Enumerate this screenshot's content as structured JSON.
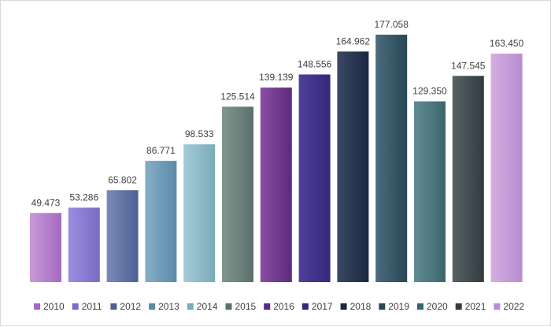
{
  "chart_data": {
    "type": "bar",
    "title": "",
    "xlabel": "",
    "ylabel": "",
    "ylim": [
      0,
      190
    ],
    "grid": false,
    "legend_position": "bottom",
    "categories": [
      "2010",
      "2011",
      "2012",
      "2013",
      "2014",
      "2015",
      "2016",
      "2017",
      "2018",
      "2019",
      "2020",
      "2021",
      "2022"
    ],
    "values": [
      49.473,
      53.286,
      65.802,
      86.771,
      98.533,
      125.514,
      139.139,
      148.556,
      164.962,
      177.058,
      129.35,
      147.545,
      163.45
    ],
    "value_labels": [
      "49.473",
      "53.286",
      "65.802",
      "86.771",
      "98.533",
      "125.514",
      "139.139",
      "148.556",
      "164.962",
      "177.058",
      "129.350",
      "147.545",
      "163.450"
    ],
    "colors": [
      [
        "#c99ad8",
        "#a46ac0"
      ],
      [
        "#9a8ee0",
        "#7a6cc4"
      ],
      [
        "#7a8ab8",
        "#4e5f92"
      ],
      [
        "#86aec8",
        "#5a8aa8"
      ],
      [
        "#a4ccd8",
        "#7aaab8"
      ],
      [
        "#80968f",
        "#5b706b"
      ],
      [
        "#8a4ea4",
        "#5c2a7c"
      ],
      [
        "#50409c",
        "#33287a"
      ],
      [
        "#3a4866",
        "#1c2840"
      ],
      [
        "#4a6c7c",
        "#284654"
      ],
      [
        "#628c92",
        "#3c666e"
      ],
      [
        "#566264",
        "#323c3e"
      ],
      [
        "#d4aee0",
        "#b88cd0"
      ]
    ]
  }
}
